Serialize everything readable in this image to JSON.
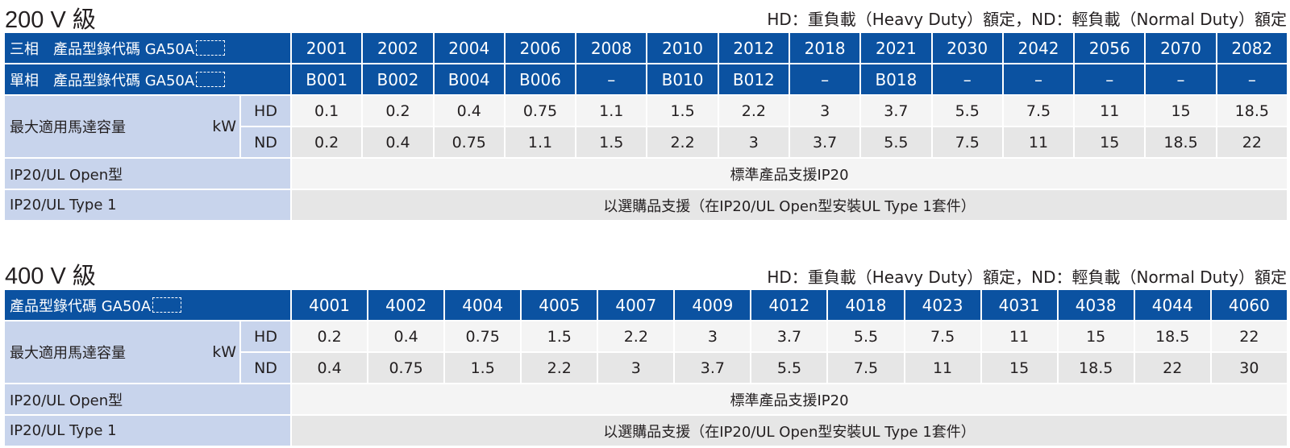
{
  "sections": [
    {
      "title": "200 V 級",
      "note": "HD：重負載（Heavy Duty）額定，ND：輕負載（Normal Duty）額定",
      "row_three_phase_label": "三相　產品型錄代碼 GA50A",
      "row_single_phase_label": "單相　產品型錄代碼 GA50A",
      "three_phase_codes": [
        "2001",
        "2002",
        "2004",
        "2006",
        "2008",
        "2010",
        "2012",
        "2018",
        "2021",
        "2030",
        "2042",
        "2056",
        "2070",
        "2082"
      ],
      "single_phase_codes": [
        "B001",
        "B002",
        "B004",
        "B006",
        "–",
        "B010",
        "B012",
        "–",
        "B018",
        "–",
        "–",
        "–",
        "–",
        "–"
      ],
      "motor_label": "最大適用馬達容量",
      "motor_unit": "kW",
      "hd_label": "HD",
      "nd_label": "ND",
      "hd_values": [
        "0.1",
        "0.2",
        "0.4",
        "0.75",
        "1.1",
        "1.5",
        "2.2",
        "3",
        "3.7",
        "5.5",
        "7.5",
        "11",
        "15",
        "18.5"
      ],
      "nd_values": [
        "0.2",
        "0.4",
        "0.75",
        "1.1",
        "1.5",
        "2.2",
        "3",
        "3.7",
        "5.5",
        "7.5",
        "11",
        "15",
        "18.5",
        "22"
      ],
      "ip20_open_label": "IP20/UL Open型",
      "ip20_open_value": "標準產品支援IP20",
      "ip20_type1_label": "IP20/UL Type 1",
      "ip20_type1_value": "以選購品支援（在IP20/UL Open型安裝UL Type 1套件）"
    },
    {
      "title": "400 V 級",
      "note": "HD：重負載（Heavy Duty）額定，ND：輕負載（Normal Duty）額定",
      "row_code_label": "產品型錄代碼 GA50A",
      "codes": [
        "4001",
        "4002",
        "4004",
        "4005",
        "4007",
        "4009",
        "4012",
        "4018",
        "4023",
        "4031",
        "4038",
        "4044",
        "4060"
      ],
      "motor_label": "最大適用馬達容量",
      "motor_unit": "kW",
      "hd_label": "HD",
      "nd_label": "ND",
      "hd_values": [
        "0.2",
        "0.4",
        "0.75",
        "1.5",
        "2.2",
        "3",
        "3.7",
        "5.5",
        "7.5",
        "11",
        "15",
        "18.5",
        "22"
      ],
      "nd_values": [
        "0.4",
        "0.75",
        "1.5",
        "2.2",
        "3",
        "3.7",
        "5.5",
        "7.5",
        "11",
        "15",
        "18.5",
        "22",
        "30"
      ],
      "ip20_open_label": "IP20/UL Open型",
      "ip20_open_value": "標準產品支援IP20",
      "ip20_type1_label": "IP20/UL Type 1",
      "ip20_type1_value": "以選購品支援（在IP20/UL Open型安裝UL Type 1套件）"
    }
  ],
  "colors": {
    "header_blue": "#0b52a1",
    "label_lavender": "#c8d4ec",
    "row_light": "#f4f4f4",
    "row_dark": "#e6e6e6"
  }
}
